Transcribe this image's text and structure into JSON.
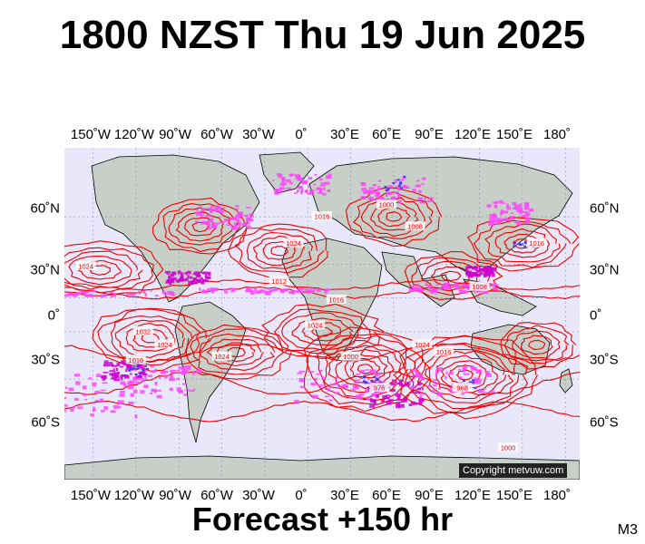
{
  "header": {
    "title": "1800 NZST Thu 19 Jun 2025"
  },
  "footer": {
    "forecast": "Forecast +150 hr",
    "model_code": "M3"
  },
  "map": {
    "copyright": "Copyright metvuw.com",
    "longitude_labels": [
      "150˚W",
      "120˚W",
      "90˚W",
      "60˚W",
      "30˚W",
      "0˚",
      "30˚E",
      "60˚E",
      "90˚E",
      "120˚E",
      "150˚E",
      "180˚"
    ],
    "latitude_labels": [
      "60˚N",
      "30˚N",
      "0˚",
      "30˚S",
      "60˚S"
    ],
    "isobar_labels": [
      {
        "text": "1024",
        "lon": -155,
        "lat": 28
      },
      {
        "text": "1032",
        "lon": -115,
        "lat": -30
      },
      {
        "text": "1024",
        "lon": -100,
        "lat": -40
      },
      {
        "text": "1016",
        "lon": -120,
        "lat": -50
      },
      {
        "text": "1024",
        "lon": -60,
        "lat": -48
      },
      {
        "text": "1000",
        "lon": 30,
        "lat": -48
      },
      {
        "text": "1024",
        "lon": 80,
        "lat": -40
      },
      {
        "text": "1016",
        "lon": 95,
        "lat": -45
      },
      {
        "text": "976",
        "lon": 50,
        "lat": -64
      },
      {
        "text": "968",
        "lon": 108,
        "lat": -64
      },
      {
        "text": "1000",
        "lon": 140,
        "lat": -80
      },
      {
        "text": "1024",
        "lon": -10,
        "lat": 45
      },
      {
        "text": "1016",
        "lon": 10,
        "lat": 60
      },
      {
        "text": "1008",
        "lon": 75,
        "lat": 55
      },
      {
        "text": "1000",
        "lon": 55,
        "lat": 65
      },
      {
        "text": "1016",
        "lon": 160,
        "lat": 45
      },
      {
        "text": "1008",
        "lon": 120,
        "lat": 10
      },
      {
        "text": "1012",
        "lon": -20,
        "lat": 15
      },
      {
        "text": "1016",
        "lon": 20,
        "lat": -2
      },
      {
        "text": "1024",
        "lon": 5,
        "lat": -25
      }
    ],
    "colors": {
      "ocean": "#e8e8fa",
      "land": "#c8cec8",
      "isobar": "#ee0000",
      "rain_light": "#ff44ff",
      "rain_medium": "#cc00cc",
      "rain_heavy": "#4433ff",
      "grid": "#8080b0"
    }
  }
}
